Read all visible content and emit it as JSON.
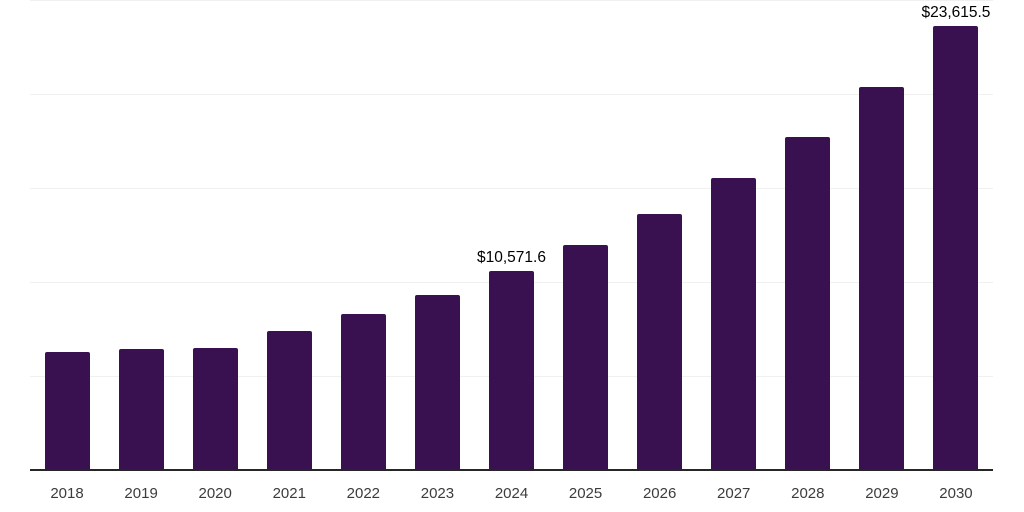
{
  "chart_data": {
    "type": "bar",
    "title": "",
    "xlabel": "",
    "ylabel": "",
    "categories": [
      "2018",
      "2019",
      "2020",
      "2021",
      "2022",
      "2023",
      "2024",
      "2025",
      "2026",
      "2027",
      "2028",
      "2029",
      "2030"
    ],
    "values": [
      6260,
      6420,
      6490,
      7390,
      8280,
      9330,
      10571.6,
      11970,
      13600,
      15520,
      17730,
      20390,
      23615.5
    ],
    "annotations": [
      {
        "category": "2024",
        "text": "$10,571.6",
        "value": 10571.6
      },
      {
        "category": "2030",
        "text": "$23,615.5",
        "value": 23615.5
      }
    ],
    "ylim": [
      0,
      25000
    ],
    "grid_interval": 5000,
    "grid": true,
    "legend": false,
    "y_axis_labels_visible": false,
    "colors": {
      "bar": "#3a1150",
      "axis_line": "#262626",
      "gridline": "#f0f0f0",
      "tick_label": "#3c3c3c",
      "annotation": "#000000",
      "background": "#ffffff"
    }
  }
}
